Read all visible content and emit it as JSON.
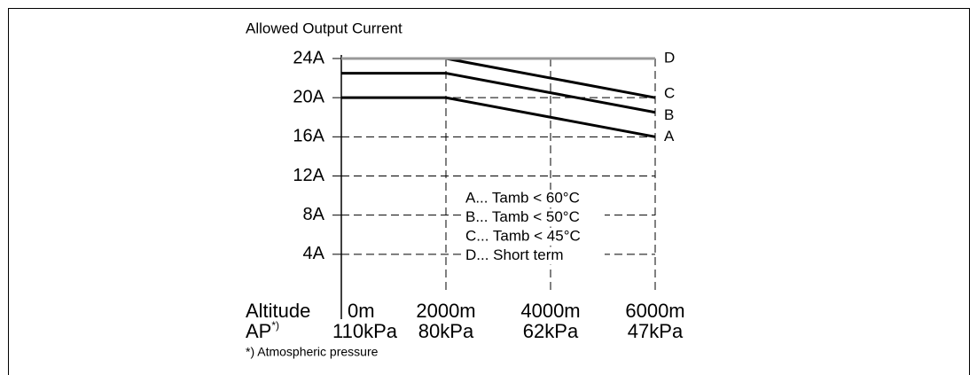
{
  "chart_data": {
    "type": "line",
    "title": "Allowed Output Current",
    "x_row_label": "Altitude",
    "x2_row_label": "AP",
    "x2_row_label_sup": "*)",
    "footnote": "*) Atmospheric pressure",
    "xlim": [
      0,
      6000
    ],
    "xticks": [
      {
        "value": 0,
        "label": "0m"
      },
      {
        "value": 2000,
        "label": "2000m"
      },
      {
        "value": 4000,
        "label": "4000m"
      },
      {
        "value": 6000,
        "label": "6000m"
      }
    ],
    "x2tick_labels": [
      "110kPa",
      "80kPa",
      "62kPa",
      "47kPa"
    ],
    "ylim": [
      0,
      24
    ],
    "yticks": [
      {
        "value": 4,
        "label": "4A"
      },
      {
        "value": 8,
        "label": "8A"
      },
      {
        "value": 12,
        "label": "12A"
      },
      {
        "value": 16,
        "label": "16A"
      },
      {
        "value": 20,
        "label": "20A"
      },
      {
        "value": 24,
        "label": "24A"
      }
    ],
    "grid": true,
    "x": [
      0,
      2000,
      6000
    ],
    "series": [
      {
        "name": "A",
        "legend": "A... Tamb < 60°C",
        "color": "#000000",
        "values": [
          20,
          20,
          16
        ]
      },
      {
        "name": "B",
        "legend": "B... Tamb < 50°C",
        "color": "#000000",
        "values": [
          22.5,
          22.5,
          18.5
        ]
      },
      {
        "name": "C",
        "legend": "C... Tamb < 45°C",
        "color": "#000000",
        "values": [
          24,
          24,
          20
        ]
      },
      {
        "name": "D",
        "legend": "D... Short term",
        "color": "#999999",
        "values": [
          24,
          24,
          24
        ]
      }
    ]
  }
}
